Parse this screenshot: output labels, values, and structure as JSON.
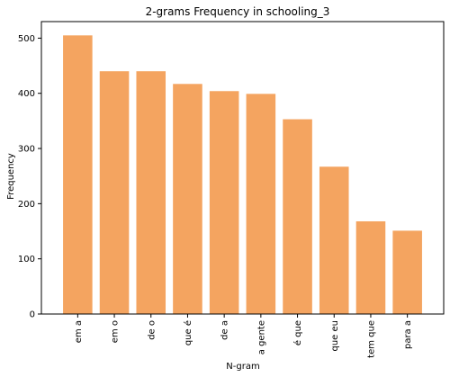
{
  "chart_data": {
    "type": "bar",
    "title": "2-grams Frequency in schooling_3",
    "xlabel": "N-gram",
    "ylabel": "Frequency",
    "categories": [
      "em a",
      "em o",
      "de o",
      "que é",
      "de a",
      "a gente",
      "é que",
      "que eu",
      "tem que",
      "para a"
    ],
    "values": [
      505,
      440,
      440,
      417,
      404,
      399,
      353,
      267,
      168,
      151
    ],
    "ylim": [
      0,
      530
    ],
    "yticks": [
      0,
      100,
      200,
      300,
      400,
      500
    ],
    "bar_color": "#f4a460",
    "grid": false,
    "legend": "none"
  }
}
